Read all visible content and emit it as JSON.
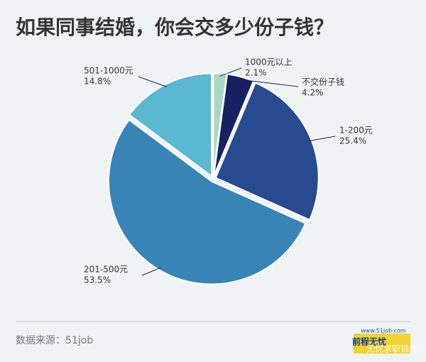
{
  "chart_data": {
    "type": "pie",
    "title": "如果同事结婚，你会交多少份子钱？",
    "categories": [
      "1000元以上",
      "不交份子钱",
      "1-200元",
      "201-500元",
      "501-1000元"
    ],
    "values": [
      2.1,
      4.2,
      25.4,
      53.5,
      14.8
    ],
    "value_labels": [
      "2.1%",
      "4.2%",
      "25.4%",
      "53.5%",
      "14.8%"
    ],
    "colors": [
      "#a9d9c3",
      "#172063",
      "#284a91",
      "#3884b7",
      "#5bb8d1"
    ],
    "source": "数据来源：51job",
    "logo_url": "www.51job.com",
    "logo_name": "前程无忧",
    "watermark": "无忧求职锦囊"
  }
}
